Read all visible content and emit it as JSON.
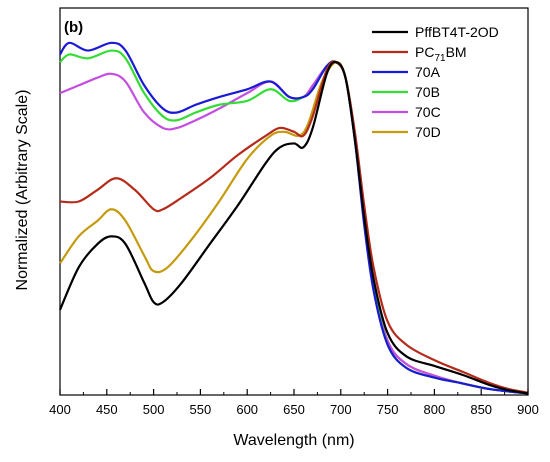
{
  "chart_data": {
    "type": "line",
    "panel_label": "(b)",
    "xlabel": "Wavelength (nm)",
    "ylabel": "Normalized (Arbitrary Scale)",
    "xlim": [
      400,
      900
    ],
    "ylim": [
      0,
      1
    ],
    "x_ticks": [
      "400",
      "450",
      "500",
      "550",
      "600",
      "650",
      "700",
      "750",
      "800",
      "850",
      "900"
    ],
    "y_ticks_shown": false,
    "grid": false,
    "legend_position": "top-right",
    "series": [
      {
        "name": "PffBT4T-2OD",
        "legend_main": "PffBT4T-2OD",
        "legend_sub": "",
        "legend_tail": "",
        "color": "#000000",
        "points": [
          [
            400,
            0.22
          ],
          [
            420,
            0.33
          ],
          [
            440,
            0.39
          ],
          [
            455,
            0.41
          ],
          [
            470,
            0.39
          ],
          [
            490,
            0.29
          ],
          [
            500,
            0.24
          ],
          [
            510,
            0.24
          ],
          [
            530,
            0.29
          ],
          [
            560,
            0.39
          ],
          [
            590,
            0.49
          ],
          [
            620,
            0.6
          ],
          [
            635,
            0.64
          ],
          [
            650,
            0.65
          ],
          [
            660,
            0.64
          ],
          [
            670,
            0.69
          ],
          [
            685,
            0.83
          ],
          [
            695,
            0.86
          ],
          [
            705,
            0.82
          ],
          [
            715,
            0.66
          ],
          [
            725,
            0.46
          ],
          [
            735,
            0.3
          ],
          [
            750,
            0.16
          ],
          [
            770,
            0.1
          ],
          [
            800,
            0.075
          ],
          [
            830,
            0.052
          ],
          [
            860,
            0.025
          ],
          [
            880,
            0.012
          ],
          [
            900,
            0.004
          ]
        ]
      },
      {
        "name": "PC71BM",
        "legend_main": "PC",
        "legend_sub": "71",
        "legend_tail": "BM",
        "color": "#b52b1b",
        "points": [
          [
            400,
            0.5
          ],
          [
            420,
            0.5
          ],
          [
            440,
            0.53
          ],
          [
            460,
            0.56
          ],
          [
            480,
            0.53
          ],
          [
            500,
            0.48
          ],
          [
            510,
            0.48
          ],
          [
            530,
            0.51
          ],
          [
            560,
            0.56
          ],
          [
            590,
            0.62
          ],
          [
            620,
            0.67
          ],
          [
            635,
            0.69
          ],
          [
            650,
            0.68
          ],
          [
            660,
            0.67
          ],
          [
            670,
            0.72
          ],
          [
            685,
            0.84
          ],
          [
            695,
            0.86
          ],
          [
            705,
            0.82
          ],
          [
            715,
            0.68
          ],
          [
            725,
            0.49
          ],
          [
            735,
            0.33
          ],
          [
            750,
            0.19
          ],
          [
            770,
            0.13
          ],
          [
            800,
            0.09
          ],
          [
            830,
            0.06
          ],
          [
            860,
            0.03
          ],
          [
            880,
            0.015
          ],
          [
            900,
            0.006
          ]
        ]
      },
      {
        "name": "70A",
        "legend_main": "70A",
        "legend_sub": "",
        "legend_tail": "",
        "color": "#1a1ad6",
        "points": [
          [
            400,
            0.88
          ],
          [
            410,
            0.91
          ],
          [
            430,
            0.89
          ],
          [
            455,
            0.91
          ],
          [
            470,
            0.89
          ],
          [
            490,
            0.8
          ],
          [
            510,
            0.74
          ],
          [
            525,
            0.73
          ],
          [
            545,
            0.75
          ],
          [
            570,
            0.77
          ],
          [
            600,
            0.79
          ],
          [
            625,
            0.81
          ],
          [
            645,
            0.77
          ],
          [
            660,
            0.77
          ],
          [
            670,
            0.79
          ],
          [
            685,
            0.85
          ],
          [
            695,
            0.86
          ],
          [
            705,
            0.82
          ],
          [
            715,
            0.66
          ],
          [
            725,
            0.44
          ],
          [
            735,
            0.27
          ],
          [
            750,
            0.13
          ],
          [
            770,
            0.07
          ],
          [
            800,
            0.045
          ],
          [
            830,
            0.03
          ],
          [
            860,
            0.015
          ],
          [
            900,
            0.004
          ]
        ]
      },
      {
        "name": "70B",
        "legend_main": "70B",
        "legend_sub": "",
        "legend_tail": "",
        "color": "#33dd33",
        "points": [
          [
            400,
            0.86
          ],
          [
            410,
            0.88
          ],
          [
            430,
            0.87
          ],
          [
            455,
            0.89
          ],
          [
            470,
            0.87
          ],
          [
            490,
            0.78
          ],
          [
            510,
            0.72
          ],
          [
            525,
            0.71
          ],
          [
            545,
            0.73
          ],
          [
            570,
            0.75
          ],
          [
            600,
            0.76
          ],
          [
            625,
            0.79
          ],
          [
            645,
            0.76
          ],
          [
            660,
            0.77
          ],
          [
            670,
            0.79
          ],
          [
            685,
            0.85
          ],
          [
            695,
            0.86
          ],
          [
            705,
            0.82
          ],
          [
            715,
            0.67
          ],
          [
            725,
            0.45
          ],
          [
            735,
            0.28
          ],
          [
            750,
            0.13
          ],
          [
            770,
            0.07
          ],
          [
            800,
            0.045
          ],
          [
            830,
            0.03
          ],
          [
            860,
            0.015
          ],
          [
            900,
            0.004
          ]
        ]
      },
      {
        "name": "70C",
        "legend_main": "70C",
        "legend_sub": "",
        "legend_tail": "",
        "color": "#c44ee0",
        "points": [
          [
            400,
            0.78
          ],
          [
            420,
            0.8
          ],
          [
            440,
            0.82
          ],
          [
            455,
            0.83
          ],
          [
            470,
            0.81
          ],
          [
            490,
            0.73
          ],
          [
            510,
            0.69
          ],
          [
            525,
            0.69
          ],
          [
            545,
            0.71
          ],
          [
            570,
            0.74
          ],
          [
            600,
            0.78
          ],
          [
            625,
            0.81
          ],
          [
            645,
            0.77
          ],
          [
            660,
            0.77
          ],
          [
            670,
            0.8
          ],
          [
            685,
            0.85
          ],
          [
            695,
            0.86
          ],
          [
            705,
            0.82
          ],
          [
            715,
            0.66
          ],
          [
            725,
            0.45
          ],
          [
            735,
            0.28
          ],
          [
            750,
            0.14
          ],
          [
            770,
            0.08
          ],
          [
            800,
            0.05
          ],
          [
            830,
            0.03
          ],
          [
            860,
            0.015
          ],
          [
            900,
            0.004
          ]
        ]
      },
      {
        "name": "70D",
        "legend_main": "70D",
        "legend_sub": "",
        "legend_tail": "",
        "color": "#c59a0c",
        "points": [
          [
            400,
            0.34
          ],
          [
            420,
            0.41
          ],
          [
            440,
            0.45
          ],
          [
            455,
            0.48
          ],
          [
            470,
            0.45
          ],
          [
            490,
            0.36
          ],
          [
            500,
            0.32
          ],
          [
            515,
            0.33
          ],
          [
            540,
            0.4
          ],
          [
            570,
            0.5
          ],
          [
            600,
            0.61
          ],
          [
            625,
            0.67
          ],
          [
            640,
            0.68
          ],
          [
            655,
            0.67
          ],
          [
            665,
            0.7
          ],
          [
            680,
            0.81
          ],
          [
            695,
            0.86
          ],
          [
            705,
            0.82
          ],
          [
            715,
            0.67
          ],
          [
            725,
            0.46
          ],
          [
            735,
            0.29
          ],
          [
            750,
            0.14
          ],
          [
            770,
            0.08
          ],
          [
            800,
            0.05
          ],
          [
            830,
            0.03
          ],
          [
            860,
            0.015
          ],
          [
            900,
            0.004
          ]
        ]
      }
    ]
  }
}
